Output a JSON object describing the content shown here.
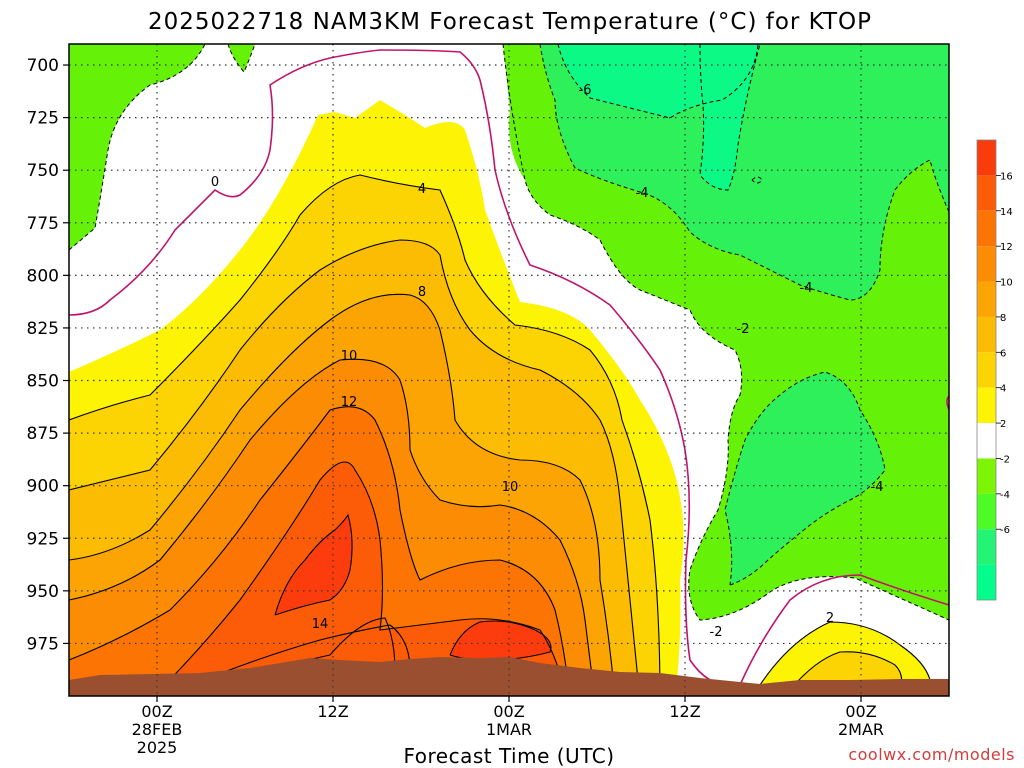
{
  "chart_data": {
    "type": "heatmap",
    "title": "2025022718 NAM3KM Forecast Temperature (°C) for KTOP",
    "xlabel": "Forecast Time (UTC)",
    "ylabel": "",
    "credit": "coolwx.com/models",
    "y_axis": {
      "ticks": [
        700,
        725,
        750,
        775,
        800,
        825,
        850,
        875,
        900,
        925,
        950,
        975
      ],
      "ylim": [
        1000,
        690
      ],
      "grid": true
    },
    "x_axis": {
      "ticks": [
        {
          "line1": "00Z",
          "line2": "28FEB",
          "line3": "2025"
        },
        {
          "line1": "12Z",
          "line2": "",
          "line3": ""
        },
        {
          "line1": "00Z",
          "line2": "1MAR",
          "line3": ""
        },
        {
          "line1": "12Z",
          "line2": "",
          "line3": ""
        },
        {
          "line1": "00Z",
          "line2": "2MAR",
          "line3": ""
        }
      ],
      "xlim_hours_from_28FEB00Z": [
        -6,
        54
      ],
      "grid": true
    },
    "colorbar": {
      "labels": [
        "16",
        "14",
        "12",
        "10",
        "8",
        "6",
        "4",
        "2",
        "-2",
        "-4",
        "-6"
      ],
      "levels": [
        18,
        16,
        14,
        12,
        10,
        8,
        6,
        4,
        2,
        -2,
        -4,
        -6,
        -8
      ],
      "colors": [
        "#f83c0c",
        "#fc5c08",
        "#fc7404",
        "#fc8c04",
        "#fca404",
        "#fcbc04",
        "#fcd404",
        "#fcf404",
        "#ffffff",
        "#7cf404",
        "#4cfc24",
        "#24f474",
        "#04fc8c"
      ]
    },
    "contour_labels": [
      "0",
      "4",
      "8",
      "10",
      "12",
      "14",
      "10",
      "-6",
      "-4",
      "-4",
      "-2",
      "-2",
      "2",
      "-4"
    ],
    "colors": {
      "warm_max": "#fc3c0c",
      "zero_line": "#c0146c",
      "terrain": "#9a5030"
    }
  }
}
